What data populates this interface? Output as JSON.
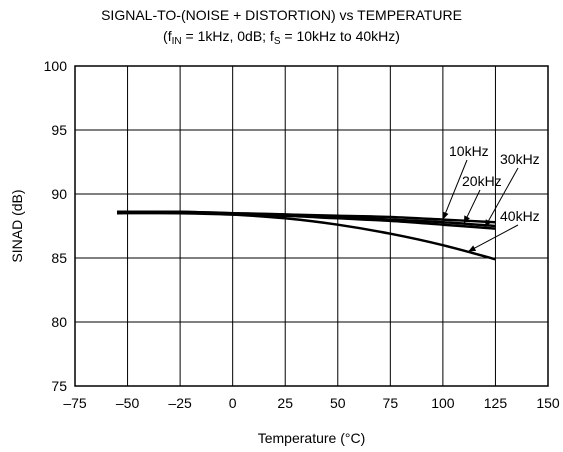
{
  "title_line1": "SIGNAL-TO-(NOISE + DISTORTION) vs TEMPERATURE",
  "subtitle": {
    "open": "(f",
    "fin_sub": "IN",
    "mid": " = 1kHz, 0dB; f",
    "fs_sub": "S",
    "close": " = 10kHz to 40kHz)"
  },
  "chart_data": {
    "type": "line",
    "title": "SIGNAL-TO-(NOISE + DISTORTION) vs TEMPERATURE",
    "subtitle": "(fIN = 1kHz, 0dB; fS = 10kHz to 40kHz)",
    "xlabel": "Temperature (°C)",
    "ylabel": "SINAD (dB)",
    "xlim": [
      -75,
      150
    ],
    "ylim": [
      75,
      100
    ],
    "xticks": [
      -75,
      -50,
      -25,
      0,
      25,
      50,
      75,
      100,
      125,
      150
    ],
    "xtick_labels": [
      "–75",
      "–50",
      "–25",
      "0",
      "25",
      "50",
      "75",
      "100",
      "125",
      "150"
    ],
    "yticks": [
      75,
      80,
      85,
      90,
      95,
      100
    ],
    "ytick_labels": [
      "75",
      "80",
      "85",
      "90",
      "95",
      "100"
    ],
    "grid": true,
    "series": [
      {
        "name": "10kHz",
        "color": "#000000",
        "x": [
          -55,
          -25,
          0,
          25,
          50,
          75,
          100,
          125
        ],
        "y": [
          88.6,
          88.6,
          88.5,
          88.4,
          88.3,
          88.2,
          88.0,
          87.8
        ]
      },
      {
        "name": "20kHz",
        "color": "#000000",
        "x": [
          -55,
          -25,
          0,
          25,
          50,
          75,
          100,
          125
        ],
        "y": [
          88.6,
          88.6,
          88.5,
          88.4,
          88.2,
          88.0,
          87.8,
          87.5
        ]
      },
      {
        "name": "30kHz",
        "color": "#000000",
        "x": [
          -55,
          -25,
          0,
          25,
          50,
          75,
          100,
          125
        ],
        "y": [
          88.5,
          88.5,
          88.4,
          88.3,
          88.1,
          87.9,
          87.6,
          87.3
        ]
      },
      {
        "name": "40kHz",
        "color": "#000000",
        "x": [
          -55,
          -25,
          0,
          25,
          50,
          75,
          100,
          125
        ],
        "y": [
          88.6,
          88.6,
          88.4,
          88.1,
          87.6,
          86.9,
          86.0,
          84.9
        ]
      }
    ],
    "annotations": [
      {
        "text": "10kHz",
        "point": [
          100,
          88.0
        ]
      },
      {
        "text": "20kHz",
        "point": [
          110,
          87.7
        ]
      },
      {
        "text": "30kHz",
        "point": [
          120,
          87.4
        ]
      },
      {
        "text": "40kHz",
        "point": [
          112,
          85.5
        ]
      }
    ]
  }
}
